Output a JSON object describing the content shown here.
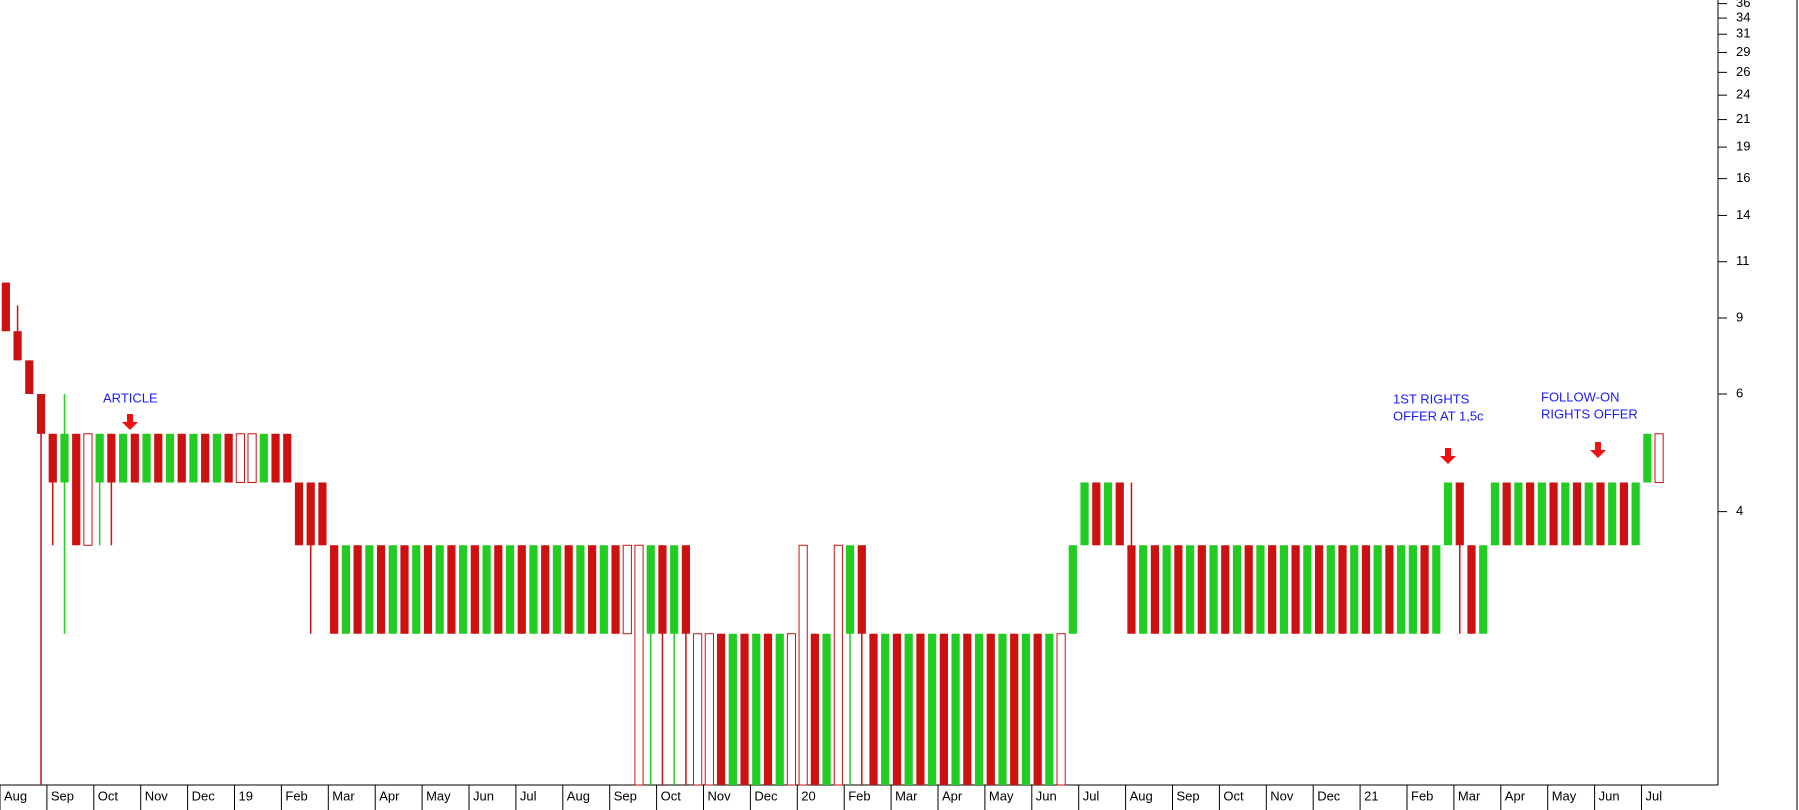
{
  "chart_data": {
    "type": "candlestick",
    "categories": [
      "Aug",
      null,
      null,
      null,
      "Sep",
      null,
      null,
      null,
      "Oct",
      null,
      null,
      null,
      "Nov",
      null,
      null,
      null,
      "Dec",
      null,
      null,
      null,
      "19",
      null,
      null,
      null,
      "Feb",
      null,
      null,
      null,
      "Mar",
      null,
      null,
      null,
      "Apr",
      null,
      null,
      null,
      "May",
      null,
      null,
      null,
      "Jun",
      null,
      null,
      null,
      "Jul",
      null,
      null,
      null,
      "Aug",
      null,
      null,
      null,
      "Sep",
      null,
      null,
      null,
      "Oct",
      null,
      null,
      null,
      "Nov",
      null,
      null,
      null,
      "Dec",
      null,
      null,
      null,
      "20",
      null,
      null,
      null,
      "Feb",
      null,
      null,
      null,
      "Mar",
      null,
      null,
      null,
      "Apr",
      null,
      null,
      null,
      "May",
      null,
      null,
      null,
      "Jun",
      null,
      null,
      null,
      "Jul",
      null,
      null,
      null,
      "Aug",
      null,
      null,
      null,
      "Sep",
      null,
      null,
      null,
      "Oct",
      null,
      null,
      null,
      "Nov",
      null,
      null,
      null,
      "Dec",
      null,
      null,
      null,
      "21",
      null,
      null,
      null,
      "Feb",
      null,
      null,
      null,
      "Mar",
      null,
      null,
      null,
      "Apr",
      null,
      null,
      null,
      "May",
      null,
      null,
      null,
      "Jun",
      null,
      null,
      null,
      "Jul",
      null
    ],
    "open": [
      10,
      8,
      7,
      6,
      5,
      4,
      5,
      4,
      4,
      5,
      4,
      5,
      4,
      5,
      4,
      5,
      4,
      5,
      4,
      5,
      4,
      5,
      4,
      5,
      5,
      4,
      4,
      4,
      3,
      2,
      3,
      2,
      3,
      2,
      3,
      2,
      3,
      2,
      3,
      2,
      3,
      2,
      3,
      2,
      3,
      2,
      3,
      2,
      3,
      2,
      3,
      2,
      3,
      2,
      2,
      2,
      3,
      2,
      3,
      2,
      2,
      2,
      1,
      2,
      1,
      2,
      1,
      2,
      2,
      2,
      1,
      2,
      2,
      3,
      2,
      1,
      2,
      1,
      2,
      1,
      2,
      1,
      2,
      1,
      2,
      1,
      2,
      1,
      2,
      1,
      2,
      2,
      3,
      4,
      3,
      4,
      3,
      2,
      3,
      2,
      3,
      2,
      3,
      2,
      3,
      2,
      3,
      2,
      3,
      2,
      3,
      2,
      3,
      2,
      3,
      2,
      3,
      2,
      3,
      2,
      2,
      3,
      2,
      3,
      4,
      3,
      2,
      3,
      4,
      3,
      4,
      3,
      4,
      3,
      4,
      3,
      4,
      3,
      4,
      3,
      4,
      5
    ],
    "high": [
      10,
      9,
      7,
      6,
      5,
      6,
      5,
      5,
      5,
      5,
      5,
      5,
      5,
      5,
      5,
      5,
      5,
      5,
      5,
      5,
      5,
      5,
      5,
      5,
      5,
      4,
      4,
      4,
      3,
      3,
      3,
      3,
      3,
      3,
      3,
      3,
      3,
      3,
      3,
      3,
      3,
      3,
      3,
      3,
      3,
      3,
      3,
      3,
      3,
      3,
      3,
      3,
      3,
      3,
      3,
      3,
      3,
      3,
      3,
      2,
      2,
      2,
      2,
      2,
      2,
      2,
      2,
      2,
      3,
      2,
      2,
      3,
      3,
      3,
      2,
      2,
      2,
      2,
      2,
      2,
      2,
      2,
      2,
      2,
      2,
      2,
      2,
      2,
      2,
      2,
      2,
      3,
      4,
      4,
      4,
      4,
      4,
      3,
      3,
      3,
      3,
      3,
      3,
      3,
      3,
      3,
      3,
      3,
      3,
      3,
      3,
      3,
      3,
      3,
      3,
      3,
      3,
      3,
      3,
      3,
      3,
      3,
      3,
      4,
      4,
      3,
      3,
      4,
      4,
      4,
      4,
      4,
      4,
      4,
      4,
      4,
      4,
      4,
      4,
      4,
      5,
      5
    ],
    "low": [
      8,
      7,
      6,
      1,
      3,
      2,
      3,
      3,
      3,
      3,
      4,
      4,
      4,
      4,
      4,
      4,
      4,
      4,
      4,
      4,
      4,
      4,
      4,
      4,
      4,
      3,
      2,
      3,
      2,
      2,
      2,
      2,
      2,
      2,
      2,
      2,
      2,
      2,
      2,
      2,
      2,
      2,
      2,
      2,
      2,
      2,
      2,
      2,
      2,
      2,
      2,
      2,
      2,
      2,
      1,
      1,
      1,
      1,
      1,
      1,
      1,
      1,
      1,
      1,
      1,
      1,
      1,
      1,
      1,
      1,
      1,
      1,
      1,
      1,
      1,
      1,
      1,
      1,
      1,
      1,
      1,
      1,
      1,
      1,
      1,
      1,
      1,
      1,
      1,
      1,
      1,
      2,
      3,
      3,
      3,
      3,
      2,
      2,
      2,
      2,
      2,
      2,
      2,
      2,
      2,
      2,
      2,
      2,
      2,
      2,
      2,
      2,
      2,
      2,
      2,
      2,
      2,
      2,
      2,
      2,
      2,
      2,
      2,
      3,
      2,
      2,
      2,
      3,
      3,
      3,
      3,
      3,
      3,
      3,
      3,
      3,
      3,
      3,
      3,
      3,
      4,
      4
    ],
    "close": [
      8,
      7,
      6,
      5,
      4,
      5,
      3,
      4,
      5,
      4,
      5,
      4,
      5,
      4,
      5,
      4,
      5,
      4,
      5,
      4,
      4,
      5,
      5,
      4,
      4,
      3,
      3,
      3,
      2,
      3,
      2,
      3,
      2,
      3,
      2,
      3,
      2,
      3,
      2,
      3,
      2,
      3,
      2,
      3,
      2,
      3,
      2,
      3,
      2,
      3,
      2,
      3,
      2,
      2,
      2,
      3,
      2,
      3,
      2,
      2,
      2,
      1,
      2,
      1,
      2,
      1,
      2,
      2,
      2,
      1,
      2,
      2,
      3,
      2,
      1,
      2,
      1,
      2,
      1,
      2,
      1,
      2,
      1,
      2,
      1,
      2,
      1,
      2,
      1,
      2,
      2,
      3,
      4,
      3,
      4,
      3,
      2,
      3,
      2,
      3,
      2,
      3,
      2,
      3,
      2,
      3,
      2,
      3,
      2,
      3,
      2,
      3,
      2,
      3,
      2,
      3,
      2,
      3,
      2,
      3,
      3,
      2,
      3,
      4,
      3,
      2,
      3,
      4,
      3,
      4,
      3,
      4,
      3,
      4,
      3,
      4,
      3,
      4,
      3,
      4,
      5,
      5
    ],
    "up_color": "#22cc22",
    "down_color": "#cc1111",
    "log_scale": true,
    "ylim": [
      1,
      36.5
    ],
    "yticks": [
      {
        "value": 35.9,
        "label": "36"
      },
      {
        "value": 33.6,
        "label": "34"
      },
      {
        "value": 31.2,
        "label": "31"
      },
      {
        "value": 28.7,
        "label": "29"
      },
      {
        "value": 26.2,
        "label": "26"
      },
      {
        "value": 23.6,
        "label": "24"
      },
      {
        "value": 21.1,
        "label": "21"
      },
      {
        "value": 18.6,
        "label": "19"
      },
      {
        "value": 16.1,
        "label": "16"
      },
      {
        "value": 13.6,
        "label": "14"
      },
      11,
      {
        "value": 8.5,
        "label": "9"
      },
      6,
      {
        "value": 3.5,
        "label": "4"
      }
    ],
    "annotations": [
      {
        "lines": [
          "ARTICLE"
        ]
      },
      {
        "lines": [
          "1ST RIGHTS",
          "OFFER AT 1,5c"
        ]
      },
      {
        "lines": [
          "FOLLOW-ON",
          "RIGHTS OFFER"
        ]
      }
    ]
  }
}
